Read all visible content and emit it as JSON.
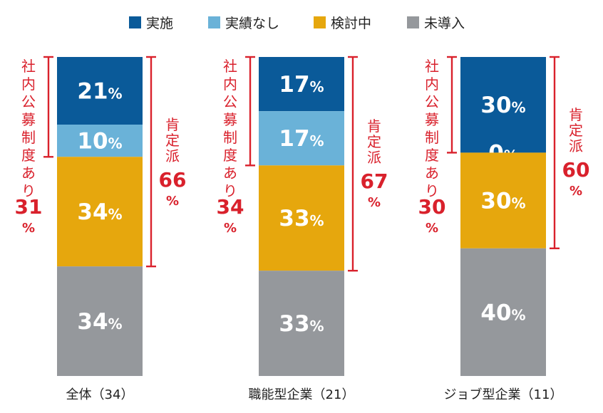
{
  "chart_data": {
    "type": "bar",
    "stacked": true,
    "categories": [
      "全体（34）",
      "職能型企業（21）",
      "ジョブ型企業（11）"
    ],
    "series": [
      {
        "name": "実施",
        "color": "#0a5a99",
        "values": [
          21,
          17,
          30
        ]
      },
      {
        "name": "実績なし",
        "color": "#6ab2d8",
        "values": [
          10,
          17,
          0
        ]
      },
      {
        "name": "検討中",
        "color": "#e6a70d",
        "values": [
          34,
          33,
          30
        ]
      },
      {
        "name": "未導入",
        "color": "#95989c",
        "values": [
          34,
          33,
          40
        ]
      }
    ],
    "value_suffix": "%",
    "legend_position": "top",
    "brackets": {
      "left": {
        "label": "社内公募制度あり",
        "values": [
          "31",
          "34",
          "30"
        ],
        "suffix": "%"
      },
      "right": {
        "label": "肯定派",
        "values": [
          "66",
          "67",
          "60"
        ],
        "suffix": "%"
      }
    },
    "accent_color": "#d9212c"
  }
}
